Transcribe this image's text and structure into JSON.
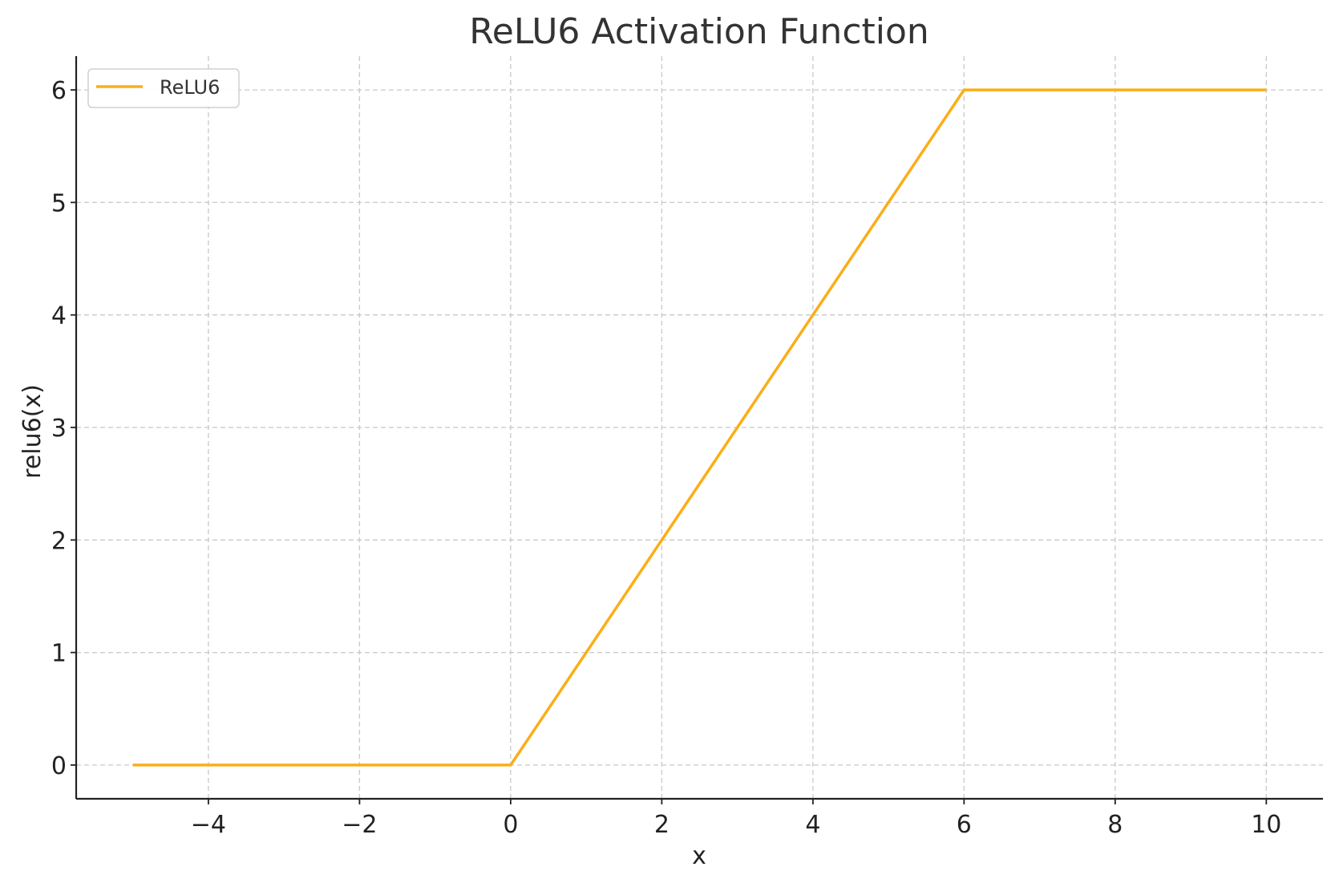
{
  "chart_data": {
    "type": "line",
    "title": "ReLU6 Activation Function",
    "xlabel": "x",
    "ylabel": "relu6(x)",
    "xlim": [
      -5.75,
      10.75
    ],
    "ylim": [
      -0.3,
      6.3
    ],
    "xticks": [
      -4,
      -2,
      0,
      2,
      4,
      6,
      8,
      10
    ],
    "xtick_labels": [
      "−4",
      "−2",
      "0",
      "2",
      "4",
      "6",
      "8",
      "10"
    ],
    "yticks": [
      0,
      1,
      2,
      3,
      4,
      5,
      6
    ],
    "ytick_labels": [
      "0",
      "1",
      "2",
      "3",
      "4",
      "5",
      "6"
    ],
    "grid": true,
    "legend_position": "top-left",
    "series": [
      {
        "name": "ReLU6",
        "color": "#FBAE17",
        "x": [
          -5,
          0,
          6,
          10
        ],
        "y": [
          0,
          0,
          6,
          6
        ]
      }
    ]
  }
}
